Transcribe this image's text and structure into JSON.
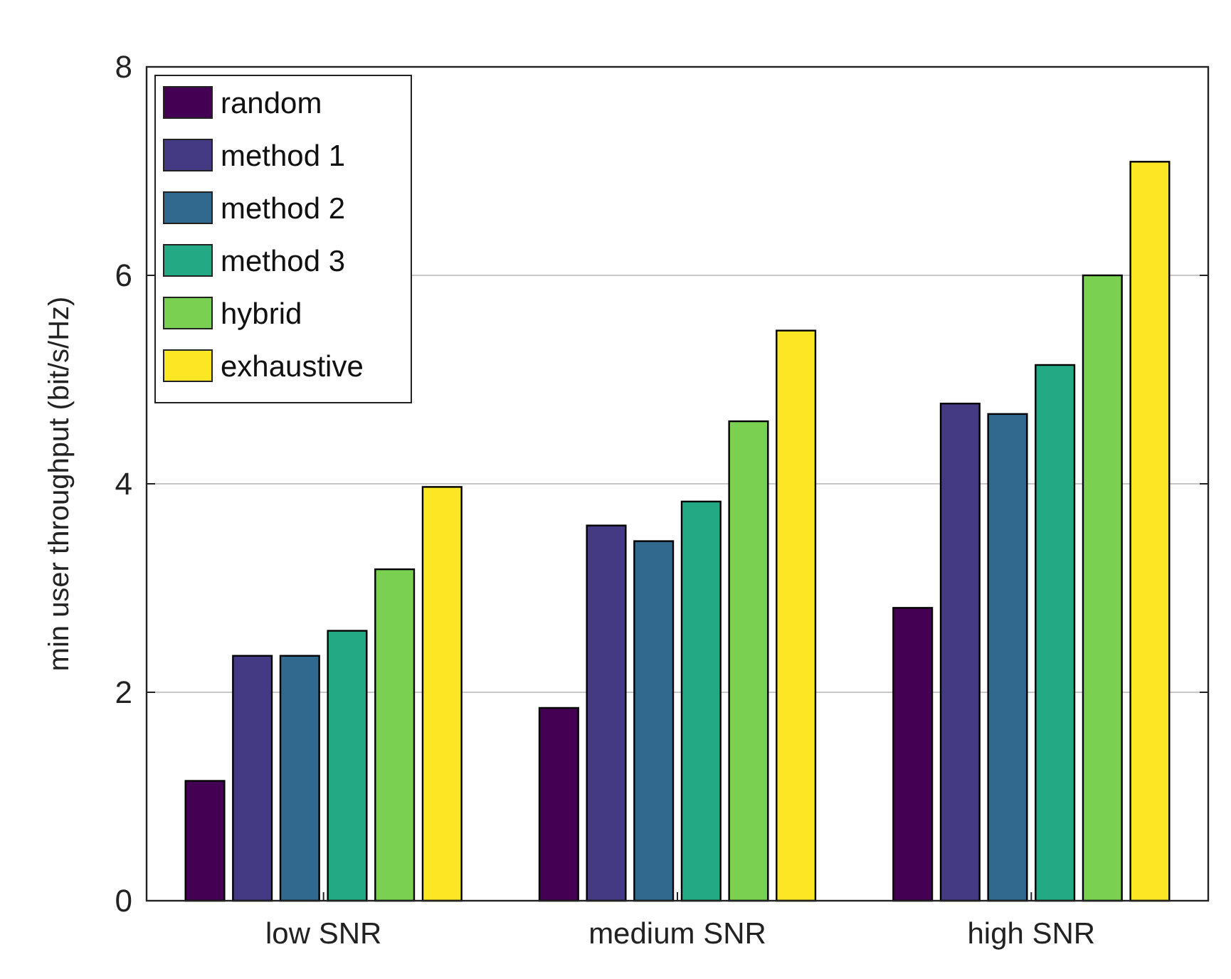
{
  "chart_data": {
    "type": "bar",
    "ylabel": "min user throughput (bit/s/Hz)",
    "categories": [
      "low SNR",
      "medium SNR",
      "high SNR"
    ],
    "series": [
      {
        "name": "random",
        "color": "#440154",
        "values": [
          1.15,
          1.85,
          2.81
        ]
      },
      {
        "name": "method 1",
        "color": "#443983",
        "values": [
          2.35,
          3.6,
          4.77
        ]
      },
      {
        "name": "method 2",
        "color": "#31688e",
        "values": [
          2.35,
          3.45,
          4.67
        ]
      },
      {
        "name": "method 3",
        "color": "#23a983",
        "values": [
          2.59,
          3.83,
          5.14
        ]
      },
      {
        "name": "hybrid",
        "color": "#7ad151",
        "values": [
          3.18,
          4.6,
          6.0
        ]
      },
      {
        "name": "exhaustive",
        "color": "#fde725",
        "values": [
          3.97,
          5.47,
          7.09
        ]
      }
    ],
    "ylim": [
      0,
      8
    ],
    "yticks": [
      0,
      2,
      4,
      6,
      8
    ],
    "grid": "y",
    "legend": "top left"
  }
}
